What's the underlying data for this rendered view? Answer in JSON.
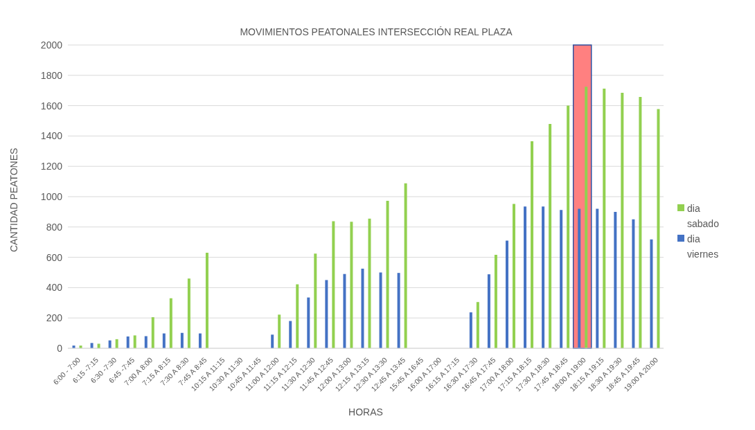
{
  "chart_data": {
    "type": "bar",
    "title": "MOVIMIENTOS PEATONALES INTERSECCIÓN REAL PLAZA",
    "xlabel": "HORAS",
    "ylabel": "CANTIDAD PEATONES",
    "categories": [
      "6:00 - 7:00",
      "6:15 -7:15",
      "6:30 -7:30",
      "6:45 -7:45",
      "7:00 A 8:00",
      "7:15 A 8:15",
      "7:30 A 8:30",
      "7:45 A 8:45",
      "10:15 A 11:15",
      "10:30 A 11:30",
      "10:45 A 11:45",
      "11:00 A 12:00",
      "11:15 A 12:15",
      "11:30 A 12:30",
      "11:45 A 12:45",
      "12:00 A 13:00",
      "12:15 A 13:15",
      "12:30 A 13:30",
      "12:45 A 13:45",
      "15:45 A 16:45",
      "16:00 A 17:00",
      "16:15 A 17:15",
      "16:30 A 17:30",
      "16:45 A 17:45",
      "17:00 A 18:00",
      "17:15 A 18:15",
      "17:30 A 18:30",
      "17:45 A 18:45",
      "18:00 A 19:00",
      "18:15 A 19:15",
      "18:30 A 19:30",
      "18:45 A 19:45",
      "19:00 A 20:00"
    ],
    "series": [
      {
        "name": "dia viernes",
        "color": "#4472c4",
        "values": [
          18,
          35,
          52,
          78,
          80,
          98,
          102,
          98,
          null,
          null,
          null,
          90,
          180,
          335,
          450,
          490,
          525,
          500,
          497,
          null,
          null,
          null,
          237,
          488,
          710,
          935,
          935,
          912,
          920,
          920,
          900,
          850,
          718
        ]
      },
      {
        "name": "dia sabado",
        "color": "#92d050",
        "values": [
          18,
          30,
          60,
          85,
          205,
          330,
          460,
          630,
          null,
          null,
          null,
          222,
          422,
          625,
          838,
          835,
          855,
          973,
          1088,
          null,
          null,
          null,
          305,
          617,
          952,
          1365,
          1480,
          1600,
          1725,
          1712,
          1685,
          1658,
          1578
        ]
      }
    ],
    "ylim": [
      0,
      2000
    ],
    "yticks": [
      0,
      200,
      400,
      600,
      800,
      1000,
      1200,
      1400,
      1600,
      1800,
      2000
    ],
    "grid": "y",
    "legend": "right",
    "bands": [
      {
        "axis": "x",
        "from": "18:00 A 19:00",
        "to": "18:00 A 19:00",
        "color": "#ff8080"
      }
    ]
  }
}
